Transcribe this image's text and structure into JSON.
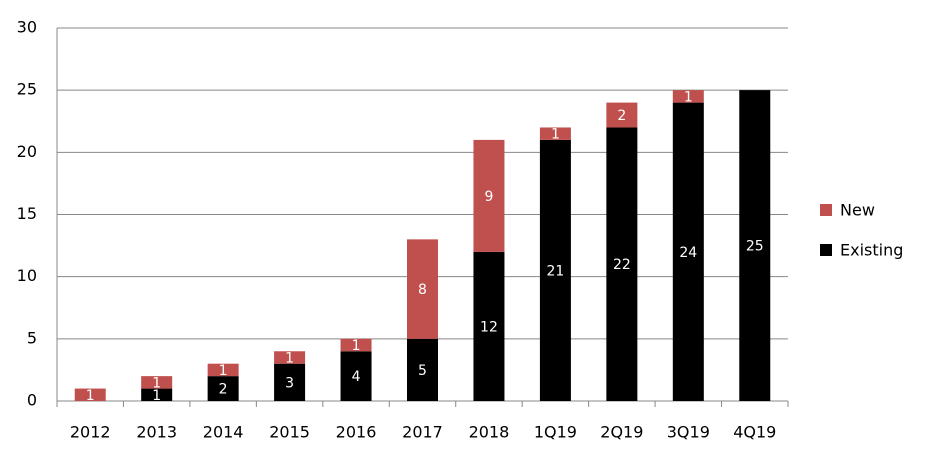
{
  "chart_data": {
    "type": "stacked_bar",
    "categories": [
      "2012",
      "2013",
      "2014",
      "2015",
      "2016",
      "2017",
      "2018",
      "1Q19",
      "2Q19",
      "3Q19",
      "4Q19"
    ],
    "series": [
      {
        "name": "New",
        "color": "#c0504d",
        "values": [
          1,
          1,
          1,
          1,
          1,
          8,
          9,
          1,
          2,
          1,
          null
        ]
      },
      {
        "name": "Existing",
        "color": "#000000",
        "values": [
          null,
          1,
          2,
          3,
          4,
          5,
          12,
          21,
          22,
          24,
          25
        ]
      }
    ],
    "stack_order": [
      "Existing",
      "New"
    ],
    "ylim": [
      0,
      30
    ],
    "yticks": [
      0,
      5,
      10,
      15,
      20,
      25,
      30
    ],
    "grid": true,
    "legend": "right"
  }
}
